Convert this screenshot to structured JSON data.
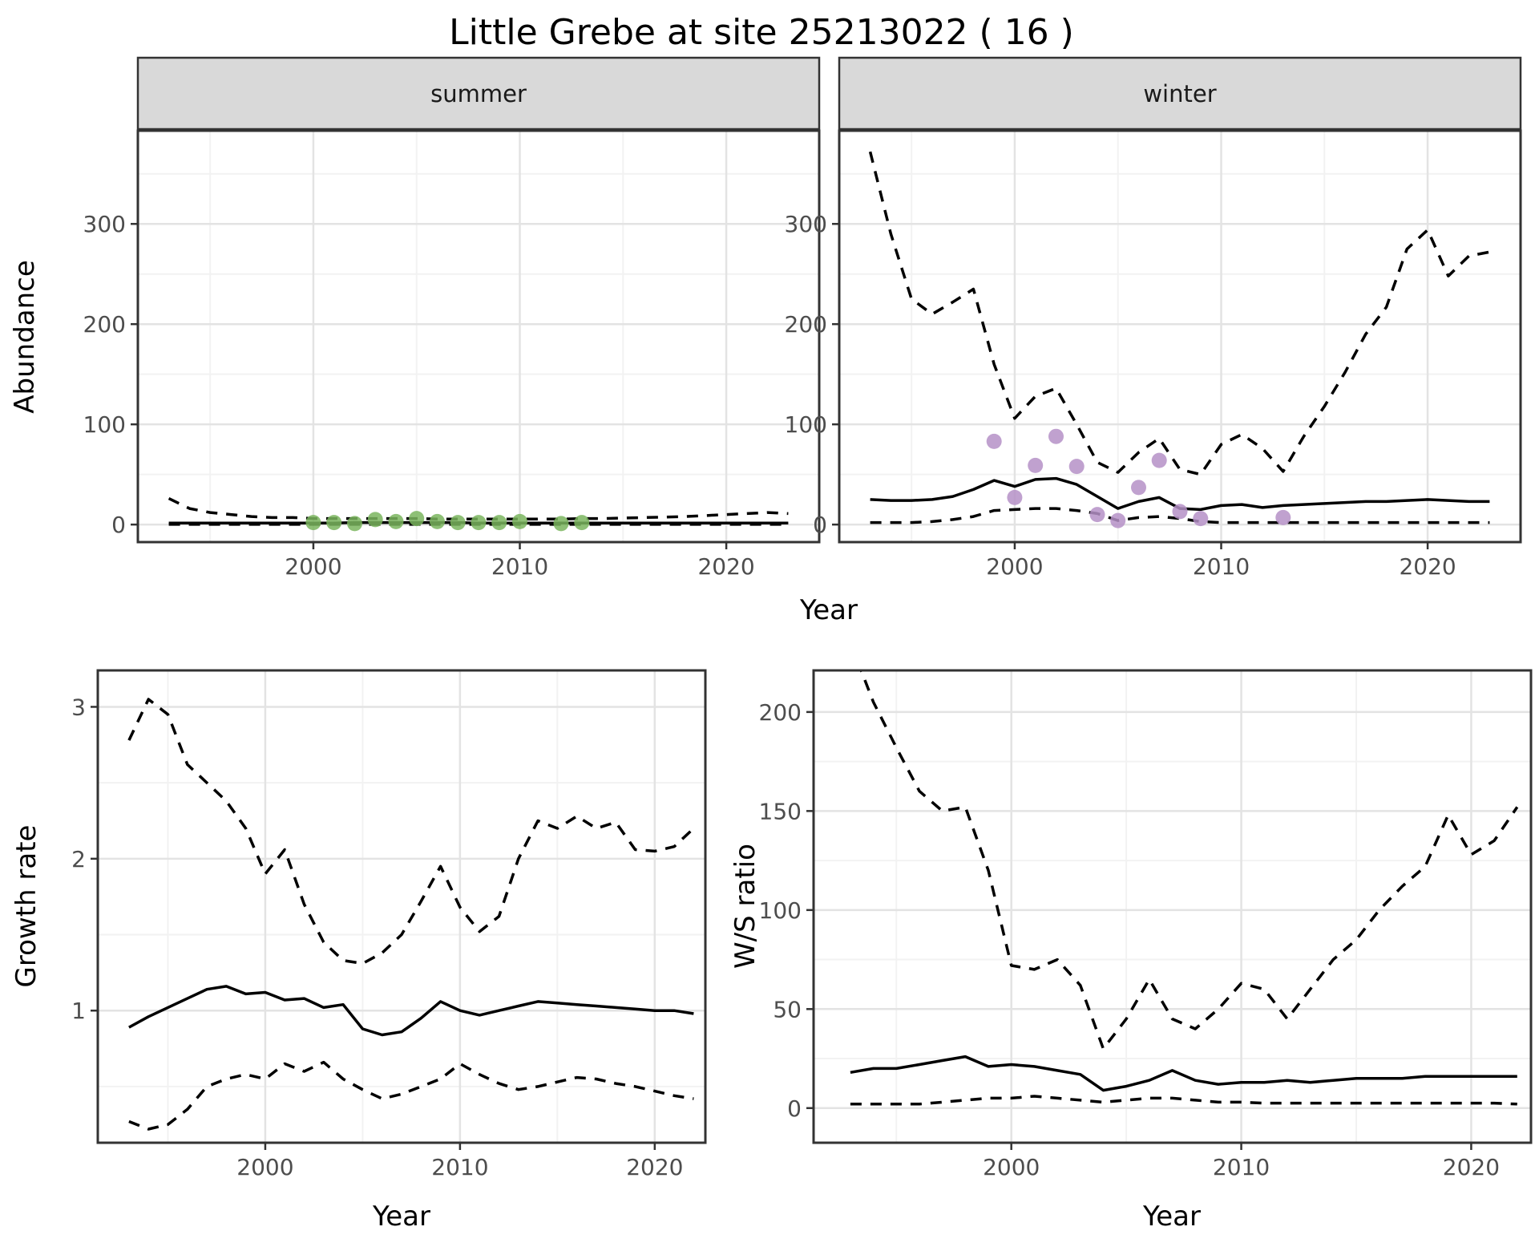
{
  "title": "Little Grebe at site 25213022 ( 16 )",
  "axes": {
    "abundance": "Abundance",
    "year_top": "Year",
    "growth": "Growth rate",
    "year_growth": "Year",
    "ws": "W/S ratio",
    "year_ws": "Year"
  },
  "colors": {
    "line": "#000000",
    "summer_points": "#7ab55e",
    "winter_points": "#b590c7",
    "grid_major": "#e3e3e3",
    "grid_minor": "#f2f2f2",
    "panel_border": "#333333",
    "strip_bg": "#d9d9d9",
    "tick_label": "#4d4d4d",
    "axis_title": "#000000"
  },
  "chart_data": [
    {
      "id": "summer",
      "type": "line",
      "facet_label": "summer",
      "ylabel": "Abundance",
      "xlabel": "Year",
      "xlim": [
        1991.5,
        2024.5
      ],
      "ylim": [
        -17.5,
        393
      ],
      "x_ticks": [
        2000,
        2010,
        2020
      ],
      "x_minor": [
        1995,
        2005,
        2015
      ],
      "y_ticks": [
        0,
        100,
        200,
        300
      ],
      "y_minor": [
        50,
        150,
        250,
        350
      ],
      "grid": true,
      "legend": "none",
      "x": [
        1993,
        1994,
        1995,
        1996,
        1997,
        1998,
        1999,
        2000,
        2001,
        2002,
        2003,
        2004,
        2005,
        2006,
        2007,
        2008,
        2009,
        2010,
        2011,
        2012,
        2013,
        2014,
        2015,
        2016,
        2017,
        2018,
        2019,
        2020,
        2021,
        2022,
        2023
      ],
      "series": [
        {
          "name": "lower_ci",
          "style": "dashed",
          "values": [
            0.2,
            0.2,
            0.2,
            0.2,
            0.2,
            0.2,
            0.2,
            0.2,
            0.2,
            0.2,
            0.2,
            0.2,
            0.2,
            0.2,
            0.2,
            0.2,
            0.2,
            0.2,
            0.2,
            0.2,
            0.2,
            0.2,
            0.2,
            0.2,
            0.2,
            0.2,
            0.2,
            0.2,
            0.2,
            0.2,
            0.2
          ]
        },
        {
          "name": "upper_ci",
          "style": "dashed",
          "values": [
            26,
            16,
            12,
            10,
            8,
            7,
            7,
            6,
            6,
            6,
            6,
            6,
            6,
            5.5,
            5.5,
            5.5,
            5.5,
            5.5,
            5.5,
            5.5,
            6,
            6,
            6.5,
            7,
            7.5,
            8,
            9,
            10,
            11,
            12,
            11
          ]
        },
        {
          "name": "median",
          "style": "solid",
          "values": [
            1.5,
            1.5,
            1.5,
            1.5,
            1.5,
            1.5,
            1.5,
            1.5,
            1.5,
            2,
            2,
            2,
            2,
            2,
            2,
            1.5,
            1.5,
            1.5,
            1.5,
            1.5,
            1.5,
            1.5,
            1.5,
            1.5,
            1.5,
            1.5,
            1.5,
            1.5,
            1.5,
            1.5,
            1.5
          ]
        }
      ],
      "points": {
        "name": "observed_counts",
        "color": "#7ab55e",
        "x": [
          2000,
          2001,
          2002,
          2003,
          2004,
          2005,
          2006,
          2007,
          2008,
          2009,
          2010,
          2012,
          2013
        ],
        "values": [
          2,
          2,
          1,
          5,
          3,
          6,
          3,
          2,
          2,
          2,
          3,
          1,
          2
        ]
      }
    },
    {
      "id": "winter",
      "type": "line",
      "facet_label": "winter",
      "ylabel": "Abundance",
      "xlabel": "Year",
      "xlim": [
        1991.5,
        2024.5
      ],
      "ylim": [
        -17.5,
        393
      ],
      "x_ticks": [
        2000,
        2010,
        2020
      ],
      "x_minor": [
        1995,
        2005,
        2015
      ],
      "y_ticks": [
        0,
        100,
        200,
        300
      ],
      "y_minor": [
        50,
        150,
        250,
        350
      ],
      "grid": true,
      "legend": "none",
      "x": [
        1993,
        1994,
        1995,
        1996,
        1997,
        1998,
        1999,
        2000,
        2001,
        2002,
        2003,
        2004,
        2005,
        2006,
        2007,
        2008,
        2009,
        2010,
        2011,
        2012,
        2013,
        2014,
        2015,
        2016,
        2017,
        2018,
        2019,
        2020,
        2021,
        2022,
        2023
      ],
      "series": [
        {
          "name": "lower_ci",
          "style": "dashed",
          "values": [
            2,
            2,
            2,
            3,
            5,
            8,
            14,
            15,
            16,
            16,
            14,
            11,
            4,
            7,
            8,
            6,
            3,
            2,
            2,
            2,
            2,
            2,
            2,
            2,
            2,
            2,
            2,
            2,
            2,
            2,
            2
          ]
        },
        {
          "name": "upper_ci",
          "style": "dashed",
          "values": [
            372,
            290,
            225,
            210,
            222,
            235,
            160,
            106,
            128,
            136,
            100,
            62,
            52,
            72,
            86,
            55,
            50,
            80,
            90,
            76,
            53,
            88,
            118,
            152,
            190,
            217,
            275,
            294,
            248,
            268,
            272
          ]
        },
        {
          "name": "median",
          "style": "solid",
          "values": [
            25,
            24,
            24,
            25,
            28,
            35,
            44,
            38,
            45,
            46,
            40,
            28,
            16,
            23,
            27,
            16,
            15,
            19,
            20,
            17,
            19,
            20,
            21,
            22,
            23,
            23,
            24,
            25,
            24,
            23,
            23
          ]
        }
      ],
      "points": {
        "name": "observed_counts",
        "color": "#b590c7",
        "x": [
          1999,
          2000,
          2001,
          2002,
          2003,
          2004,
          2005,
          2006,
          2007,
          2008,
          2009,
          2013
        ],
        "values": [
          83,
          27,
          59,
          88,
          58,
          10,
          4,
          37,
          64,
          13,
          6,
          7
        ]
      }
    },
    {
      "id": "growth",
      "type": "line",
      "facet_label": "",
      "ylabel": "Growth rate",
      "xlabel": "Year",
      "xlim": [
        1991.4,
        2022.6
      ],
      "ylim": [
        0.13,
        3.24
      ],
      "x_ticks": [
        2000,
        2010,
        2020
      ],
      "x_minor": [
        1995,
        2005,
        2015
      ],
      "y_ticks": [
        1,
        2,
        3
      ],
      "y_minor": [
        0.5,
        1.5,
        2.5
      ],
      "grid": true,
      "legend": "none",
      "x": [
        1993,
        1994,
        1995,
        1996,
        1997,
        1998,
        1999,
        2000,
        2001,
        2002,
        2003,
        2004,
        2005,
        2006,
        2007,
        2008,
        2009,
        2010,
        2011,
        2012,
        2013,
        2014,
        2015,
        2016,
        2017,
        2018,
        2019,
        2020,
        2021,
        2022
      ],
      "series": [
        {
          "name": "lower_ci",
          "style": "dashed",
          "values": [
            0.27,
            0.22,
            0.25,
            0.35,
            0.5,
            0.55,
            0.58,
            0.55,
            0.65,
            0.6,
            0.66,
            0.55,
            0.48,
            0.42,
            0.45,
            0.5,
            0.55,
            0.65,
            0.58,
            0.52,
            0.48,
            0.5,
            0.53,
            0.56,
            0.55,
            0.52,
            0.5,
            0.47,
            0.44,
            0.42
          ]
        },
        {
          "name": "upper_ci",
          "style": "dashed",
          "values": [
            2.78,
            3.05,
            2.95,
            2.62,
            2.5,
            2.38,
            2.2,
            1.9,
            2.06,
            1.7,
            1.45,
            1.33,
            1.31,
            1.38,
            1.5,
            1.72,
            1.95,
            1.68,
            1.52,
            1.62,
            2.0,
            2.25,
            2.2,
            2.28,
            2.2,
            2.24,
            2.06,
            2.05,
            2.08,
            2.2
          ]
        },
        {
          "name": "median",
          "style": "solid",
          "values": [
            0.89,
            0.96,
            1.02,
            1.08,
            1.14,
            1.16,
            1.11,
            1.12,
            1.07,
            1.08,
            1.02,
            1.04,
            0.88,
            0.84,
            0.86,
            0.95,
            1.06,
            1.0,
            0.97,
            1.0,
            1.03,
            1.06,
            1.05,
            1.04,
            1.03,
            1.02,
            1.01,
            1.0,
            1.0,
            0.98
          ]
        }
      ],
      "points": null
    },
    {
      "id": "ws",
      "type": "line",
      "facet_label": "",
      "ylabel": "W/S ratio",
      "xlabel": "Year",
      "xlim": [
        1991.4,
        2022.6
      ],
      "ylim": [
        -17.5,
        221
      ],
      "x_ticks": [
        2000,
        2010,
        2020
      ],
      "x_minor": [
        1995,
        2005,
        2015
      ],
      "y_ticks": [
        0,
        50,
        100,
        150,
        200
      ],
      "y_minor": [
        25,
        75,
        125,
        175
      ],
      "grid": true,
      "legend": "none",
      "x": [
        1993,
        1994,
        1995,
        1996,
        1997,
        1998,
        1999,
        2000,
        2001,
        2002,
        2003,
        2004,
        2005,
        2006,
        2007,
        2008,
        2009,
        2010,
        2011,
        2012,
        2013,
        2014,
        2015,
        2016,
        2017,
        2018,
        2019,
        2020,
        2021,
        2022
      ],
      "series": [
        {
          "name": "lower_ci",
          "style": "dashed",
          "values": [
            2,
            2,
            2,
            2,
            3,
            4,
            5,
            5,
            6,
            5,
            4,
            3,
            4,
            5,
            5,
            4,
            3,
            3,
            2.5,
            2.5,
            2.5,
            2.5,
            2.5,
            2.5,
            2.5,
            2.5,
            2.5,
            2.5,
            2.5,
            2
          ]
        },
        {
          "name": "upper_ci",
          "style": "dashed",
          "values": [
            235,
            205,
            182,
            160,
            150,
            152,
            120,
            72,
            70,
            75,
            62,
            30,
            45,
            65,
            45,
            40,
            50,
            63,
            60,
            45,
            60,
            75,
            85,
            100,
            112,
            122,
            148,
            128,
            135,
            152
          ]
        },
        {
          "name": "median",
          "style": "solid",
          "values": [
            18,
            20,
            20,
            22,
            24,
            26,
            21,
            22,
            21,
            19,
            17,
            9,
            11,
            14,
            19,
            14,
            12,
            13,
            13,
            14,
            13,
            14,
            15,
            15,
            15,
            16,
            16,
            16,
            16,
            16
          ]
        }
      ],
      "points": null
    }
  ]
}
